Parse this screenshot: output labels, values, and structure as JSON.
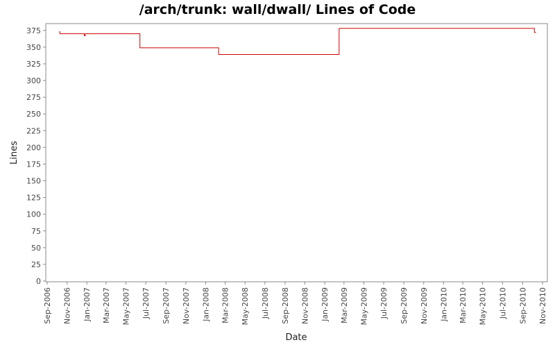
{
  "chart_data": {
    "type": "line",
    "title": "/arch/trunk: wall/dwall/ Lines of Code",
    "xlabel": "Date",
    "ylabel": "Lines",
    "xlim": [
      "2006-09-01",
      "2010-11-01"
    ],
    "ylim": [
      0,
      380
    ],
    "y_ticks": [
      0,
      25,
      50,
      75,
      100,
      125,
      150,
      175,
      200,
      225,
      250,
      275,
      300,
      325,
      350,
      375
    ],
    "x_ticks": [
      {
        "date": "2006-09-01",
        "label": "Sep-2006"
      },
      {
        "date": "2006-11-01",
        "label": "Nov-2006"
      },
      {
        "date": "2007-01-01",
        "label": "Jan-2007"
      },
      {
        "date": "2007-03-01",
        "label": "Mar-2007"
      },
      {
        "date": "2007-05-01",
        "label": "May-2007"
      },
      {
        "date": "2007-07-01",
        "label": "Jul-2007"
      },
      {
        "date": "2007-09-01",
        "label": "Sep-2007"
      },
      {
        "date": "2007-11-01",
        "label": "Nov-2007"
      },
      {
        "date": "2008-01-01",
        "label": "Jan-2008"
      },
      {
        "date": "2008-03-01",
        "label": "Mar-2008"
      },
      {
        "date": "2008-05-01",
        "label": "May-2008"
      },
      {
        "date": "2008-07-01",
        "label": "Jul-2008"
      },
      {
        "date": "2008-09-01",
        "label": "Sep-2008"
      },
      {
        "date": "2008-11-01",
        "label": "Nov-2008"
      },
      {
        "date": "2009-01-01",
        "label": "Jan-2009"
      },
      {
        "date": "2009-03-01",
        "label": "Mar-2009"
      },
      {
        "date": "2009-05-01",
        "label": "May-2009"
      },
      {
        "date": "2009-07-01",
        "label": "Jul-2009"
      },
      {
        "date": "2009-09-01",
        "label": "Sep-2009"
      },
      {
        "date": "2009-11-01",
        "label": "Nov-2009"
      },
      {
        "date": "2010-01-01",
        "label": "Jan-2010"
      },
      {
        "date": "2010-03-01",
        "label": "Mar-2010"
      },
      {
        "date": "2010-05-01",
        "label": "May-2010"
      },
      {
        "date": "2010-07-01",
        "label": "Jul-2010"
      },
      {
        "date": "2010-09-01",
        "label": "Sep-2010"
      },
      {
        "date": "2010-11-01",
        "label": "Nov-2010"
      }
    ],
    "series": [
      {
        "color": "#cc0000",
        "step": true,
        "points": [
          {
            "x": "2006-10-08",
            "y": 373
          },
          {
            "x": "2006-10-10",
            "y": 370
          },
          {
            "x": "2006-12-24",
            "y": 367
          },
          {
            "x": "2006-12-27",
            "y": 370
          },
          {
            "x": "2007-06-13",
            "y": 349
          },
          {
            "x": "2008-02-10",
            "y": 339
          },
          {
            "x": "2009-02-14",
            "y": 378
          },
          {
            "x": "2010-10-07",
            "y": 372
          },
          {
            "x": "2010-10-12",
            "y": 372
          }
        ]
      }
    ],
    "grid": false,
    "legend": "none"
  }
}
